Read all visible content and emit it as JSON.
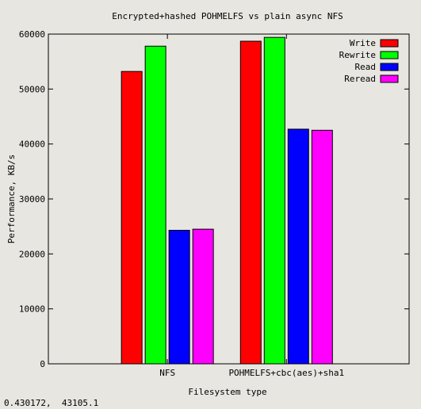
{
  "chart_data": {
    "type": "bar",
    "title": "Encrypted+hashed POHMELFS vs plain async NFS",
    "xlabel": "Filesystem type",
    "ylabel": "Performance, KB/s",
    "categories": [
      "NFS",
      "POHMELFS+cbc(aes)+sha1"
    ],
    "ylim": [
      0,
      60000
    ],
    "yticks": [
      0,
      10000,
      20000,
      30000,
      40000,
      50000,
      60000
    ],
    "grid": false,
    "legend_position": "top-right",
    "series": [
      {
        "name": "Write",
        "color": "#ff0000",
        "values": [
          53200,
          58700
        ]
      },
      {
        "name": "Rewrite",
        "color": "#00ff00",
        "values": [
          57800,
          59400
        ]
      },
      {
        "name": "Read",
        "color": "#0000ff",
        "values": [
          24300,
          42700
        ]
      },
      {
        "name": "Reread",
        "color": "#ff00ff",
        "values": [
          24500,
          42500
        ]
      }
    ]
  },
  "status_readout": "0.430172,  43105.1"
}
